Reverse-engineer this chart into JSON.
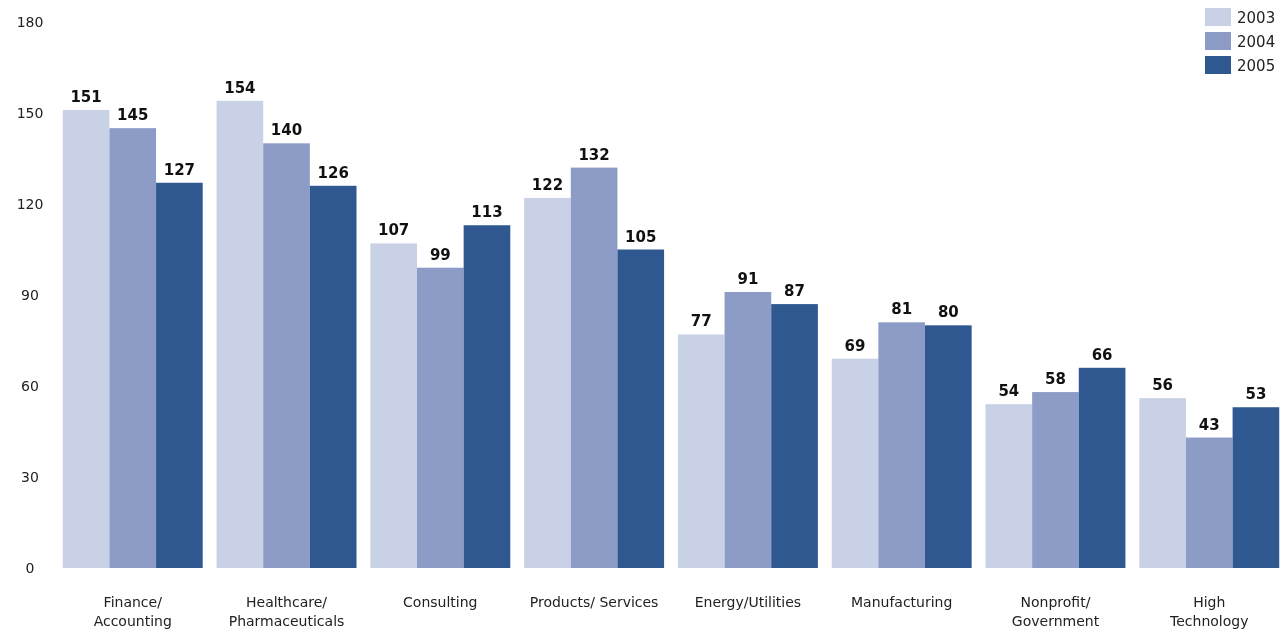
{
  "chart_data": {
    "type": "bar",
    "categories": [
      "Finance/\nAccounting",
      "Healthcare/\nPharmaceuticals",
      "Consulting",
      "Products/ Services",
      "Energy/Utilities",
      "Manufacturing",
      "Nonprofit/\nGovernment",
      "High\nTechnology"
    ],
    "series": [
      {
        "name": "2003",
        "color": "#c9d1e6",
        "values": [
          151,
          154,
          107,
          122,
          77,
          69,
          54,
          56
        ]
      },
      {
        "name": "2004",
        "color": "#8c9cc6",
        "values": [
          145,
          140,
          99,
          132,
          91,
          81,
          58,
          43
        ]
      },
      {
        "name": "2005",
        "color": "#2f5891",
        "values": [
          127,
          126,
          113,
          105,
          87,
          80,
          66,
          53
        ]
      }
    ],
    "ylim": [
      0,
      180
    ],
    "yticks": [
      0,
      30,
      60,
      90,
      120,
      150,
      180
    ],
    "grid": false,
    "legend": "top right",
    "data_labels": true
  }
}
